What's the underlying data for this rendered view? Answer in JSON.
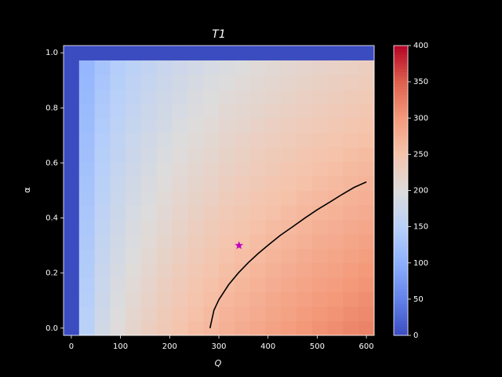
{
  "chart_data": {
    "type": "heatmap",
    "title": "T1",
    "xlabel": "Q",
    "ylabel": "α",
    "colormap": "coolwarm",
    "clim": [
      0,
      400
    ],
    "x": [
      0,
      31.58,
      63.16,
      94.74,
      126.32,
      157.89,
      189.47,
      221.05,
      252.63,
      284.21,
      315.79,
      347.37,
      378.95,
      410.53,
      442.11,
      473.68,
      505.26,
      536.84,
      568.42,
      600
    ],
    "y": [
      0,
      0.0526,
      0.1053,
      0.1579,
      0.2105,
      0.2632,
      0.3158,
      0.3684,
      0.4211,
      0.4737,
      0.5263,
      0.5789,
      0.6316,
      0.6842,
      0.7368,
      0.7895,
      0.8421,
      0.8947,
      0.9474,
      1
    ],
    "z": [
      [
        0,
        153,
        182,
        202,
        217,
        229,
        240,
        249,
        258,
        265,
        273,
        279,
        285,
        291,
        296,
        302,
        307,
        311,
        316,
        320
      ],
      [
        0,
        151,
        179,
        199,
        214,
        225,
        236,
        245,
        254,
        261,
        269,
        275,
        280,
        286,
        291,
        297,
        302,
        306,
        311,
        315
      ],
      [
        0,
        148,
        176,
        196,
        210,
        222,
        232,
        241,
        250,
        257,
        264,
        270,
        276,
        282,
        287,
        292,
        297,
        301,
        306,
        310
      ],
      [
        0,
        146,
        173,
        193,
        207,
        218,
        229,
        237,
        246,
        253,
        260,
        266,
        272,
        277,
        282,
        288,
        293,
        296,
        301,
        305
      ],
      [
        0,
        143,
        171,
        189,
        203,
        215,
        225,
        233,
        242,
        248,
        256,
        261,
        267,
        273,
        277,
        283,
        288,
        291,
        296,
        300
      ],
      [
        0,
        141,
        168,
        186,
        200,
        211,
        221,
        229,
        238,
        244,
        251,
        257,
        262,
        268,
        273,
        278,
        283,
        286,
        291,
        295
      ],
      [
        0,
        138,
        165,
        183,
        196,
        207,
        217,
        225,
        233,
        240,
        247,
        252,
        258,
        263,
        268,
        273,
        278,
        281,
        286,
        290
      ],
      [
        0,
        136,
        162,
        180,
        193,
        204,
        213,
        221,
        229,
        236,
        243,
        248,
        253,
        259,
        263,
        268,
        273,
        276,
        281,
        284
      ],
      [
        0,
        134,
        159,
        177,
        190,
        200,
        210,
        218,
        225,
        232,
        239,
        244,
        249,
        254,
        259,
        264,
        268,
        272,
        276,
        280
      ],
      [
        0,
        131,
        156,
        173,
        186,
        196,
        206,
        214,
        221,
        227,
        234,
        239,
        245,
        250,
        254,
        259,
        263,
        267,
        271,
        275
      ],
      [
        0,
        129,
        153,
        170,
        183,
        193,
        202,
        210,
        217,
        223,
        230,
        235,
        240,
        245,
        249,
        254,
        258,
        262,
        266,
        269
      ],
      [
        0,
        126,
        150,
        167,
        179,
        189,
        198,
        206,
        213,
        219,
        225,
        230,
        235,
        240,
        245,
        249,
        254,
        257,
        261,
        264
      ],
      [
        0,
        124,
        148,
        164,
        176,
        186,
        195,
        202,
        209,
        215,
        221,
        226,
        231,
        236,
        240,
        245,
        249,
        252,
        256,
        260
      ],
      [
        0,
        122,
        145,
        161,
        173,
        182,
        191,
        198,
        205,
        211,
        217,
        222,
        227,
        231,
        235,
        240,
        244,
        247,
        251,
        254
      ],
      [
        0,
        119,
        142,
        157,
        169,
        178,
        187,
        194,
        201,
        206,
        213,
        217,
        222,
        227,
        231,
        235,
        239,
        242,
        246,
        249
      ],
      [
        0,
        117,
        139,
        154,
        166,
        175,
        183,
        190,
        197,
        202,
        208,
        213,
        217,
        222,
        226,
        230,
        234,
        237,
        241,
        244
      ],
      [
        0,
        114,
        136,
        151,
        162,
        171,
        179,
        186,
        193,
        198,
        204,
        208,
        213,
        217,
        221,
        226,
        229,
        232,
        236,
        239
      ],
      [
        0,
        112,
        133,
        148,
        159,
        168,
        176,
        182,
        189,
        194,
        200,
        204,
        209,
        213,
        217,
        221,
        225,
        228,
        231,
        234
      ],
      [
        0,
        110,
        130,
        145,
        155,
        164,
        172,
        178,
        185,
        190,
        195,
        200,
        204,
        208,
        212,
        216,
        220,
        223,
        226,
        229
      ],
      [
        0,
        0,
        0,
        0,
        0,
        0,
        0,
        0,
        0,
        0,
        0,
        0,
        0,
        0,
        0,
        0,
        0,
        0,
        0,
        0
      ]
    ],
    "xlim": [
      -15.79,
      615.79
    ],
    "ylim": [
      -0.0263,
      1.0263
    ],
    "xticks": [
      0,
      100,
      200,
      300,
      400,
      500,
      600
    ],
    "yticks": [
      {
        "value": 0,
        "label": "0.0"
      },
      0.2,
      0.4,
      0.6,
      0.8,
      {
        "value": 1,
        "label": "1.0"
      }
    ],
    "colorbar_ticks": [
      0,
      50,
      100,
      150,
      200,
      250,
      300,
      350,
      400
    ],
    "curve": {
      "color": "#000000",
      "x": [
        282,
        290,
        300,
        320,
        340,
        360,
        380,
        400,
        425,
        450,
        475,
        500,
        525,
        550,
        575,
        600
      ],
      "y": [
        0,
        0.065,
        0.103,
        0.158,
        0.201,
        0.238,
        0.271,
        0.301,
        0.337,
        0.368,
        0.4,
        0.43,
        0.457,
        0.485,
        0.511,
        0.531
      ]
    },
    "marker": {
      "color": "#bf00bf",
      "x": 341,
      "y": 0.3
    }
  }
}
